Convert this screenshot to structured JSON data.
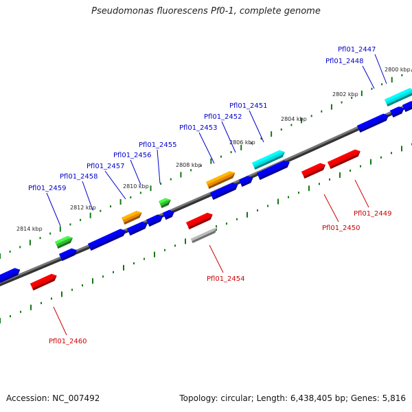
{
  "title": "Pseudomonas fluorescens Pf0-1, complete genome",
  "footer": {
    "accession": "Accession: NC_007492",
    "summary": "Topology: circular; Length: 6,438,405 bp; Genes: 5,816"
  },
  "colors": {
    "backbone": "#777777",
    "blue": "#0000ee",
    "green": "#33bb33",
    "orange": "#ee8800",
    "cyan": "#00dddd",
    "red": "#ee0000",
    "gray": "#bbbbbb",
    "label_forward": "#0000cc",
    "label_reverse": "#cc0000",
    "tick": "#117711"
  },
  "position_markers": [
    "2800 kbp",
    "2802 kbp",
    "2804 kbp",
    "2806 kbp",
    "2808 kbp",
    "2810 kbp",
    "2812 kbp",
    "2814 kbp"
  ],
  "genes_forward": [
    "Pfl01_2447",
    "Pfl01_2448",
    "Pfl01_2451",
    "Pfl01_2452",
    "Pfl01_2453",
    "Pfl01_2455",
    "Pfl01_2456",
    "Pfl01_2457",
    "Pfl01_2458",
    "Pfl01_2459"
  ],
  "genes_reverse": [
    "Pfl01_2449",
    "Pfl01_2450",
    "Pfl01_2454",
    "Pfl01_2460"
  ]
}
